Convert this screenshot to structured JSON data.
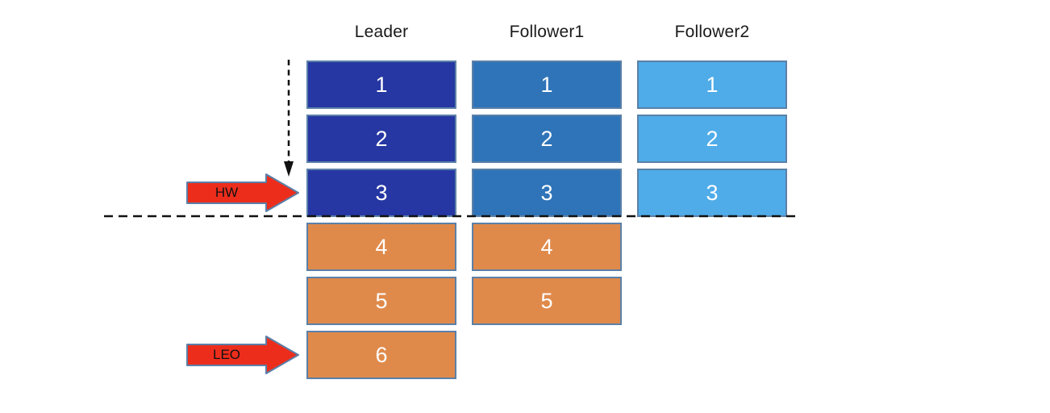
{
  "colors": {
    "leader_synced": "#2637A3",
    "follower1_synced": "#2F74B8",
    "follower2_synced": "#4FACE8",
    "unsynced": "#DF8A4B",
    "block_border": "#5B80A8",
    "block_text": "#FFFFFF",
    "header_text": "#1A1A1A",
    "marker_fill": "#ED2D1C",
    "marker_border": "#5B80A8",
    "marker_text": "#111111",
    "dashed_line": "#111111"
  },
  "columns": [
    {
      "id": "leader",
      "label": "Leader",
      "blocks": [
        {
          "value": "1",
          "state": "synced"
        },
        {
          "value": "2",
          "state": "synced"
        },
        {
          "value": "3",
          "state": "synced"
        },
        {
          "value": "4",
          "state": "unsynced"
        },
        {
          "value": "5",
          "state": "unsynced"
        },
        {
          "value": "6",
          "state": "unsynced"
        }
      ]
    },
    {
      "id": "follower1",
      "label": "Follower1",
      "blocks": [
        {
          "value": "1",
          "state": "synced"
        },
        {
          "value": "2",
          "state": "synced"
        },
        {
          "value": "3",
          "state": "synced"
        },
        {
          "value": "4",
          "state": "unsynced"
        },
        {
          "value": "5",
          "state": "unsynced"
        }
      ]
    },
    {
      "id": "follower2",
      "label": "Follower2",
      "blocks": [
        {
          "value": "1",
          "state": "synced"
        },
        {
          "value": "2",
          "state": "synced"
        },
        {
          "value": "3",
          "state": "synced"
        }
      ]
    }
  ],
  "markers": [
    {
      "id": "hw",
      "label": "HW"
    },
    {
      "id": "leo",
      "label": "LEO"
    }
  ]
}
